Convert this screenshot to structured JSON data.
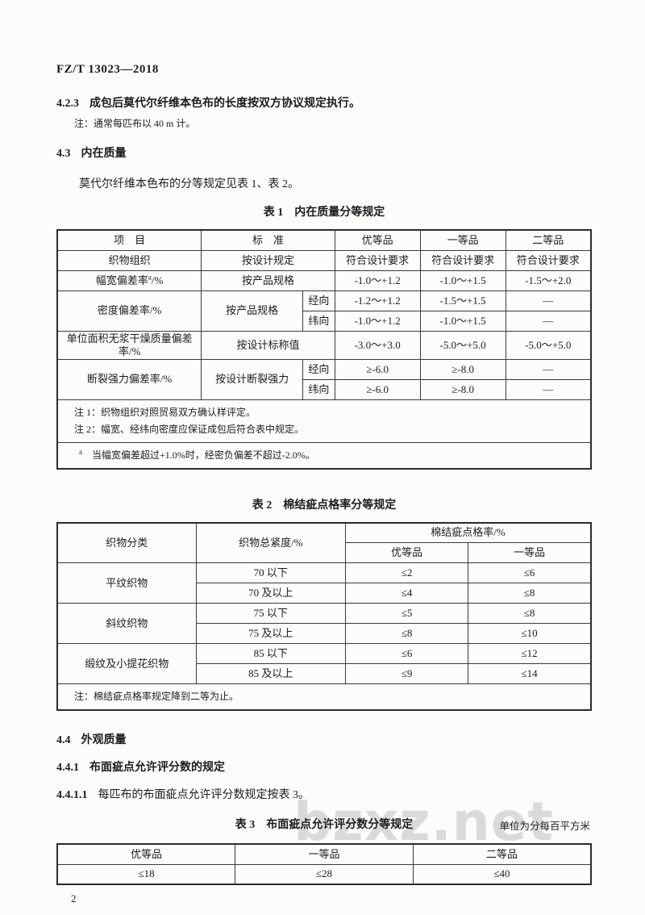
{
  "doc": {
    "header": "FZ/T 13023—2018",
    "page_number": "2",
    "watermark": "bzxz.net"
  },
  "clauses": {
    "c423_num": "4.2.3",
    "c423_text": "成包后莫代尔纤维本色布的长度按双方协议规定执行。",
    "c423_note": "注：通常每匹布以 40 m 计。",
    "c43_num": "4.3",
    "c43_title": "内在质量",
    "c43_para": "莫代尔纤维本色布的分等规定见表 1、表 2。",
    "c44_num": "4.4",
    "c44_title": "外观质量",
    "c441_num": "4.4.1",
    "c441_title": "布面疵点允许评分数的规定",
    "c4411_num": "4.4.1.1",
    "c4411_text": "每匹布的布面疵点允许评分数规定按表 3。"
  },
  "table1": {
    "caption_label": "表 1",
    "caption_title": "内在质量分等规定",
    "col_item": "项　目",
    "col_standard": "标　准",
    "col_grade1": "优等品",
    "col_grade2": "一等品",
    "col_grade3": "二等品",
    "r_weave": {
      "item": "织物组织",
      "std": "按设计规定",
      "g1": "符合设计要求",
      "g2": "符合设计要求",
      "g3": "符合设计要求"
    },
    "r_width": {
      "item": "幅宽偏差率",
      "sup": "a",
      "suffix": "/%",
      "std": "按产品规格",
      "g1": "-1.0～+1.2",
      "g2": "-1.0～+1.5",
      "g3": "-1.5～+2.0"
    },
    "r_density": {
      "item": "密度偏差率/%",
      "std": "按产品规格",
      "warp_label": "经向",
      "warp_g1": "-1.2～+1.2",
      "warp_g2": "-1.5～+1.5",
      "warp_g3": "—",
      "weft_label": "纬向",
      "weft_g1": "-1.0～+1.2",
      "weft_g2": "-1.0～+1.5",
      "weft_g3": "—"
    },
    "r_mass": {
      "item": "单位面积无浆干燥质量偏差率/%",
      "std": "按设计标称值",
      "g1": "-3.0～+3.0",
      "g2": "-5.0～+5.0",
      "g3": "-5.0～+5.0"
    },
    "r_strength": {
      "item": "断裂强力偏差率/%",
      "std": "按设计断裂强力",
      "warp_label": "经向",
      "warp_g1": "≥-6.0",
      "warp_g2": "≥-8.0",
      "warp_g3": "—",
      "weft_label": "纬向",
      "weft_g1": "≥-6.0",
      "weft_g2": "≥-8.0",
      "weft_g3": "—"
    },
    "note1": "注 1：织物组织对照贸易双方确认样评定。",
    "note2": "注 2：幅宽、经纬向密度应保证成包后符合表中规定。",
    "footnote_marker": "a",
    "footnote_text": "　当幅宽偏差超过+1.0%时，经密负偏差不超过-2.0%。"
  },
  "table2": {
    "caption_label": "表 2",
    "caption_title": "棉结疵点格率分等规定",
    "col_category": "织物分类",
    "col_tightness": "织物总紧度/%",
    "col_span": "棉结疵点格率/%",
    "col_grade1": "优等品",
    "col_grade2": "一等品",
    "groups": [
      {
        "category": "平纹织物",
        "rows": [
          {
            "t": "70 以下",
            "g1": "≤2",
            "g2": "≤6"
          },
          {
            "t": "70 及以上",
            "g1": "≤4",
            "g2": "≤8"
          }
        ]
      },
      {
        "category": "斜纹织物",
        "rows": [
          {
            "t": "75 以下",
            "g1": "≤5",
            "g2": "≤8"
          },
          {
            "t": "75 及以上",
            "g1": "≤8",
            "g2": "≤10"
          }
        ]
      },
      {
        "category": "缎纹及小提花织物",
        "rows": [
          {
            "t": "85 以下",
            "g1": "≤6",
            "g2": "≤12"
          },
          {
            "t": "85 及以上",
            "g1": "≤9",
            "g2": "≤14"
          }
        ]
      }
    ],
    "note": "注：棉结疵点格率规定降到二等为止。"
  },
  "table3": {
    "caption_label": "表 3",
    "caption_title": "布面疵点允许评分数分等规定",
    "unit_note": "单位为分每百平方米",
    "col_grade1": "优等品",
    "col_grade2": "一等品",
    "col_grade3": "二等品",
    "v_grade1": "≤18",
    "v_grade2": "≤28",
    "v_grade3": "≤40"
  }
}
